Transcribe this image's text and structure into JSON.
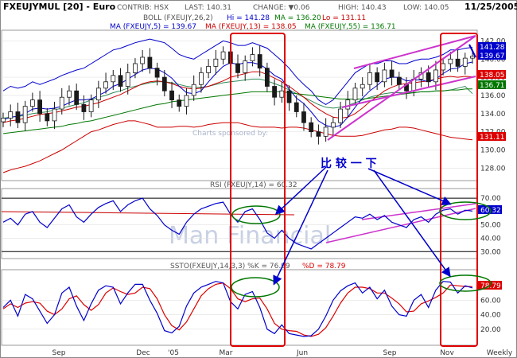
{
  "header": {
    "symbol": "FXEUJYMUL [20] - Euro",
    "contrib": "CONTRIB: HSX",
    "last": "LAST: 140.31",
    "change": "CHANGE: ▼0.06",
    "high": "HIGH: 140.43",
    "low": "LOW: 140.05",
    "date": "11/25/2005"
  },
  "legends": {
    "boll_prefix": "BOLL (FXEUJY,26,2)",
    "boll_hi": "Hi = 141.28",
    "boll_ma": "MA = 136.20",
    "boll_lo": "Lo = 131.11",
    "ma5": "MA (FXEUJY,5) = 139.67",
    "ma13": "MA (FXEUJY,13) = 138.05",
    "ma55": "MA (FXEUJY,55) = 136.71",
    "rsi": "RSI (FXEUJY,14) = 60.32",
    "ssto_prefix": "SSTO(FXEUJY,14,3,3) %K = 76.99",
    "ssto_d": "%D = 78.79"
  },
  "watermark": {
    "sponsor": "Charts sponsored by:",
    "brand": "Man Financial"
  },
  "annotation": {
    "text": "比 较 一 下"
  },
  "colors": {
    "price_panel_bg": "#ffffff",
    "candle": "#1a1a1a",
    "boll": "#cc0000",
    "ma5": "#0000cc",
    "ma13": "#cc0000",
    "ma55": "#007700",
    "trend": "#cc33cc",
    "highlight": "#dd0000",
    "ellipse": "#007700",
    "arrow": "#0000cc",
    "rsi": "#0000cc",
    "ssto_k": "#0000cc",
    "ssto_d": "#dd0000"
  },
  "chart_data": [
    {
      "type": "candlestick",
      "panel": "price",
      "x_ticks": [
        "Sep",
        "Dec",
        "'05",
        "Mar",
        "Jun",
        "Sep",
        "Nov",
        "Weekly"
      ],
      "y_ticks": [
        128.0,
        130.0,
        132.0,
        134.0,
        136.0,
        138.0,
        140.0,
        142.0
      ],
      "ylim": [
        126.8,
        143.0
      ],
      "close": [
        133.5,
        134.2,
        133.0,
        134.8,
        135.5,
        134.0,
        133.2,
        134.5,
        135.8,
        136.5,
        135.0,
        134.2,
        135.5,
        136.8,
        137.5,
        138.2,
        137.0,
        138.5,
        139.5,
        140.2,
        139.0,
        138.0,
        136.5,
        135.5,
        134.8,
        136.0,
        137.2,
        138.5,
        139.2,
        140.0,
        140.8,
        139.5,
        138.5,
        139.8,
        140.5,
        139.0,
        137.0,
        135.8,
        136.5,
        135.2,
        134.2,
        133.0,
        132.0,
        131.5,
        132.5,
        133.0,
        134.5,
        135.5,
        136.8,
        137.2,
        138.5,
        137.5,
        138.8,
        138.0,
        137.2,
        136.5,
        137.8,
        138.5,
        137.5,
        138.8,
        139.5,
        140.0,
        139.2,
        140.1,
        140.31
      ],
      "boll_hi": [
        136.5,
        137.0,
        136.8,
        137.0,
        137.5,
        137.2,
        137.5,
        137.8,
        138.2,
        138.5,
        138.8,
        139.0,
        139.5,
        140.0,
        140.5,
        141.0,
        141.2,
        141.5,
        141.8,
        142.0,
        142.2,
        142.0,
        141.8,
        141.2,
        140.5,
        140.2,
        140.0,
        140.5,
        141.0,
        141.5,
        142.0,
        141.8,
        141.5,
        141.5,
        141.8,
        141.5,
        141.2,
        140.5,
        139.8,
        139.0,
        138.0,
        137.2,
        136.5,
        135.5,
        135.0,
        135.5,
        136.5,
        137.5,
        138.5,
        139.0,
        139.5,
        139.5,
        139.8,
        139.8,
        139.5,
        139.5,
        139.8,
        140.0,
        140.0,
        140.2,
        140.5,
        141.0,
        141.0,
        141.2,
        141.28
      ],
      "boll_ma": [
        133.5,
        133.6,
        133.7,
        133.8,
        134.0,
        134.1,
        134.2,
        134.4,
        134.6,
        134.8,
        135.0,
        135.2,
        135.5,
        135.8,
        136.0,
        136.3,
        136.5,
        136.8,
        137.0,
        137.2,
        137.4,
        137.5,
        137.5,
        137.4,
        137.2,
        137.0,
        136.9,
        136.9,
        137.0,
        137.2,
        137.4,
        137.5,
        137.6,
        137.7,
        137.8,
        137.8,
        137.6,
        137.3,
        137.0,
        136.6,
        136.2,
        135.8,
        135.4,
        135.0,
        134.7,
        134.6,
        134.7,
        134.9,
        135.2,
        135.5,
        135.8,
        136.0,
        136.2,
        136.3,
        136.3,
        136.3,
        136.3,
        136.4,
        136.4,
        136.5,
        136.5,
        136.6,
        136.8,
        137.0,
        136.2
      ],
      "boll_lo": [
        127.5,
        127.8,
        128.0,
        128.2,
        128.5,
        128.8,
        129.2,
        129.6,
        130.0,
        130.5,
        131.0,
        131.5,
        132.0,
        132.2,
        132.5,
        132.8,
        133.0,
        133.2,
        133.2,
        133.0,
        132.8,
        132.5,
        132.5,
        132.5,
        132.6,
        132.6,
        132.5,
        132.6,
        132.8,
        132.9,
        133.0,
        133.0,
        133.0,
        132.8,
        132.6,
        132.5,
        132.5,
        132.5,
        132.4,
        132.5,
        132.5,
        132.4,
        132.2,
        132.0,
        131.8,
        131.6,
        131.5,
        131.5,
        131.5,
        131.6,
        131.8,
        132.0,
        132.2,
        132.3,
        132.5,
        132.5,
        132.4,
        132.2,
        132.0,
        131.8,
        131.6,
        131.4,
        131.3,
        131.2,
        131.11
      ],
      "ma5": [
        133.3,
        133.6,
        133.7,
        134.0,
        134.5,
        134.6,
        134.5,
        134.6,
        134.8,
        135.2,
        135.5,
        135.5,
        135.6,
        136.0,
        136.4,
        137.0,
        137.3,
        137.8,
        138.3,
        138.8,
        139.0,
        138.9,
        138.5,
        137.9,
        137.0,
        136.3,
        136.2,
        136.5,
        137.5,
        138.4,
        139.2,
        139.6,
        139.4,
        139.6,
        139.6,
        139.4,
        138.9,
        138.2,
        137.8,
        136.7,
        135.7,
        135.1,
        134.2,
        133.2,
        132.7,
        132.5,
        132.7,
        133.6,
        134.7,
        135.7,
        136.5,
        137.1,
        137.8,
        138.0,
        138.0,
        137.6,
        137.7,
        137.7,
        137.5,
        137.8,
        138.4,
        138.9,
        139.0,
        139.5,
        139.67
      ],
      "ma13": [
        133.0,
        133.2,
        133.3,
        133.5,
        133.7,
        133.9,
        134.0,
        134.1,
        134.3,
        134.5,
        134.7,
        134.8,
        135.0,
        135.2,
        135.5,
        135.8,
        136.1,
        136.5,
        136.9,
        137.3,
        137.5,
        137.6,
        137.5,
        137.3,
        137.0,
        136.8,
        136.7,
        136.8,
        137.0,
        137.3,
        137.6,
        138.0,
        138.2,
        138.4,
        138.6,
        138.6,
        138.3,
        137.9,
        137.5,
        137.0,
        136.4,
        135.8,
        135.1,
        134.5,
        134.0,
        133.6,
        133.5,
        133.6,
        134.0,
        134.6,
        135.3,
        135.9,
        136.5,
        136.9,
        137.2,
        137.3,
        137.4,
        137.5,
        137.6,
        137.8,
        138.0,
        138.1,
        138.0,
        138.1,
        138.05
      ],
      "ma55": [
        131.8,
        131.9,
        132.0,
        132.1,
        132.2,
        132.3,
        132.4,
        132.5,
        132.6,
        132.8,
        132.9,
        133.1,
        133.2,
        133.4,
        133.6,
        133.8,
        134.0,
        134.2,
        134.4,
        134.6,
        134.8,
        135.0,
        135.1,
        135.3,
        135.4,
        135.5,
        135.6,
        135.7,
        135.8,
        135.9,
        136.0,
        136.1,
        136.2,
        136.3,
        136.4,
        136.4,
        136.4,
        136.4,
        136.4,
        136.3,
        136.2,
        136.1,
        136.0,
        135.9,
        135.8,
        135.7,
        135.6,
        135.6,
        135.6,
        135.6,
        135.7,
        135.8,
        135.9,
        136.0,
        136.1,
        136.2,
        136.3,
        136.4,
        136.4,
        136.5,
        136.5,
        136.6,
        136.6,
        136.7,
        136.71
      ]
    },
    {
      "type": "line",
      "panel": "rsi",
      "series_name": "RSI (FXEUJY,14)",
      "y_ticks": [
        30.0,
        40.0,
        50.0,
        60.0,
        70.0
      ],
      "ylim": [
        26,
        76
      ],
      "reference_lines": [
        30,
        70
      ],
      "values": [
        52,
        55,
        50,
        58,
        60,
        52,
        48,
        55,
        62,
        65,
        56,
        52,
        58,
        63,
        66,
        68,
        60,
        65,
        68,
        70,
        62,
        57,
        50,
        46,
        43,
        52,
        58,
        62,
        64,
        66,
        67,
        58,
        52,
        60,
        62,
        54,
        44,
        40,
        46,
        40,
        36,
        34,
        32,
        36,
        40,
        44,
        48,
        52,
        56,
        55,
        58,
        54,
        57,
        52,
        50,
        48,
        54,
        56,
        52,
        58,
        61,
        62,
        58,
        61,
        60.32
      ],
      "last_label": "60.32"
    },
    {
      "type": "line",
      "panel": "ssto",
      "series": [
        {
          "name": "%K",
          "values": [
            50,
            60,
            38,
            68,
            62,
            45,
            28,
            40,
            70,
            78,
            52,
            32,
            55,
            74,
            80,
            78,
            55,
            70,
            82,
            82,
            60,
            42,
            18,
            15,
            24,
            52,
            70,
            78,
            82,
            86,
            84,
            58,
            48,
            68,
            72,
            50,
            20,
            14,
            26,
            14,
            12,
            10,
            11,
            20,
            38,
            60,
            73,
            80,
            84,
            70,
            78,
            62,
            74,
            52,
            40,
            38,
            60,
            68,
            50,
            74,
            86,
            85,
            70,
            80,
            76.99
          ]
        },
        {
          "name": "%D",
          "values": [
            48,
            55,
            50,
            56,
            58,
            56,
            45,
            40,
            48,
            62,
            66,
            54,
            46,
            54,
            70,
            77,
            72,
            68,
            70,
            78,
            76,
            62,
            40,
            25,
            19,
            30,
            48,
            66,
            76,
            82,
            84,
            76,
            62,
            58,
            62,
            63,
            48,
            28,
            20,
            18,
            17,
            12,
            10,
            13,
            22,
            38,
            56,
            70,
            78,
            78,
            76,
            70,
            70,
            63,
            55,
            44,
            45,
            55,
            59,
            64,
            70,
            81,
            80,
            79,
            78.79
          ]
        }
      ],
      "y_ticks": [
        20.0,
        40.0,
        60.0
      ],
      "ylim": [
        0,
        100
      ],
      "last_label_k": "76.99",
      "last_label_d": "78.79"
    }
  ]
}
